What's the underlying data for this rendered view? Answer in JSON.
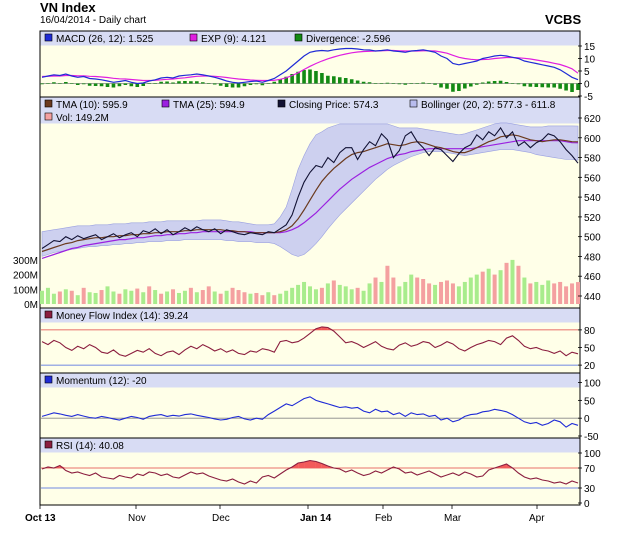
{
  "header": {
    "title": "VN Index",
    "subtitle": "16/04/2014 - Daily chart",
    "source": "VCBS"
  },
  "chart_data": {
    "type": "line",
    "x_labels": [
      "Oct 13",
      "Nov",
      "Dec",
      "Jan 14",
      "Feb",
      "Mar",
      "Apr"
    ],
    "panels": [
      {
        "id": "macd",
        "legend": [
          "MACD (26, 12): 1.525",
          "EXP (9): 4.121",
          "Divergence: -2.596"
        ],
        "colors": [
          "#1f2bd6",
          "#e01ee0",
          "#138a13"
        ],
        "y_ticks": [
          "15",
          "10",
          "5",
          "0",
          "-5"
        ],
        "ylim": [
          -5,
          15
        ]
      },
      {
        "id": "price",
        "legend": [
          "TMA (10): 595.9",
          "TMA (25): 594.9",
          "Closing Price: 574.3",
          "Bollinger (20, 2): 577.3 - 611.8",
          "Vol: 149.2M"
        ],
        "colors": [
          "#6b3a1e",
          "#9b20e0",
          "#111133",
          "#b8bcee",
          "#f4a0a0"
        ],
        "y_ticks": [
          "620",
          "600",
          "580",
          "560",
          "540",
          "520",
          "500",
          "480",
          "460",
          "440"
        ],
        "vol_ticks": [
          "300M",
          "200M",
          "100M",
          "0M"
        ],
        "ylim": [
          440,
          620
        ]
      },
      {
        "id": "mfi",
        "legend": [
          "Money Flow Index (14): 39.24"
        ],
        "colors": [
          "#8b1e3f"
        ],
        "y_ticks": [
          "80",
          "50",
          "20"
        ],
        "ylim": [
          10,
          90
        ]
      },
      {
        "id": "momentum",
        "legend": [
          "Momentum (12): -20"
        ],
        "colors": [
          "#1f2bd6"
        ],
        "y_ticks": [
          "100",
          "50",
          "0",
          "-50"
        ],
        "ylim": [
          -50,
          110
        ]
      },
      {
        "id": "rsi",
        "legend": [
          "RSI (14): 40.08"
        ],
        "colors": [
          "#8b1e3f"
        ],
        "y_ticks": [
          "100",
          "70",
          "30",
          "0"
        ],
        "ylim": [
          0,
          100
        ]
      }
    ],
    "series": [
      {
        "name": "Closing Price",
        "panel": "price",
        "values": [
          488,
          492,
          496,
          495,
          500,
          497,
          501,
          498,
          500,
          502,
          497,
          500,
          503,
          499,
          502,
          504,
          500,
          506,
          504,
          508,
          503,
          507,
          502,
          505,
          509,
          506,
          510,
          507,
          505,
          508,
          503,
          507,
          505,
          503,
          502,
          504,
          503,
          502,
          505,
          504,
          508,
          512,
          522,
          540,
          555,
          565,
          572,
          570,
          580,
          575,
          585,
          590,
          590,
          578,
          588,
          596,
          592,
          604,
          598,
          580,
          587,
          602,
          606,
          596,
          590,
          582,
          590,
          588,
          582,
          576,
          584,
          590,
          593,
          603,
          598,
          606,
          602,
          610,
          600,
          606,
          592,
          596,
          590,
          595,
          598,
          604,
          602,
          596,
          588,
          582,
          574.3
        ]
      },
      {
        "name": "TMA (10)",
        "panel": "price",
        "values": [
          485,
          487,
          489,
          491,
          493,
          494,
          496,
          497,
          498,
          499,
          499,
          500,
          500,
          501,
          501,
          502,
          502,
          503,
          503,
          504,
          504,
          505,
          505,
          505,
          506,
          506,
          507,
          507,
          507,
          507,
          507,
          506,
          506,
          505,
          505,
          504,
          504,
          504,
          504,
          504,
          505,
          507,
          511,
          518,
          527,
          537,
          547,
          556,
          563,
          569,
          574,
          579,
          583,
          585,
          586,
          588,
          590,
          592,
          594,
          593,
          592,
          593,
          595,
          596,
          595,
          593,
          591,
          590,
          588,
          586,
          585,
          585,
          587,
          590,
          593,
          596,
          598,
          601,
          602,
          603,
          602,
          600,
          598,
          597,
          596,
          597,
          598,
          598,
          597,
          596,
          595.9
        ]
      },
      {
        "name": "TMA (25)",
        "panel": "price",
        "values": [
          478,
          480,
          482,
          484,
          486,
          488,
          489,
          491,
          492,
          493,
          494,
          495,
          496,
          497,
          497,
          498,
          499,
          499,
          500,
          501,
          501,
          502,
          502,
          503,
          503,
          504,
          504,
          505,
          505,
          505,
          505,
          505,
          505,
          505,
          505,
          505,
          504,
          504,
          504,
          504,
          504,
          505,
          507,
          510,
          514,
          519,
          524,
          530,
          536,
          542,
          548,
          553,
          558,
          562,
          566,
          570,
          573,
          576,
          579,
          581,
          583,
          584,
          586,
          587,
          588,
          589,
          589,
          589,
          589,
          589,
          589,
          589,
          589,
          590,
          591,
          592,
          593,
          594,
          595,
          596,
          597,
          597,
          597,
          597,
          597,
          597,
          597,
          597,
          596,
          595,
          594.9
        ]
      },
      {
        "name": "Bollinger Upper",
        "panel": "price",
        "values": [
          505,
          506,
          507,
          508,
          509,
          510,
          511,
          511,
          511,
          512,
          512,
          512,
          513,
          513,
          513,
          514,
          514,
          514,
          515,
          515,
          515,
          516,
          516,
          516,
          516,
          516,
          516,
          517,
          517,
          517,
          517,
          516,
          515,
          515,
          514,
          513,
          512,
          512,
          512,
          513,
          520,
          530,
          548,
          568,
          582,
          594,
          603,
          606,
          610,
          612,
          614,
          614,
          614,
          614,
          614,
          614,
          614,
          614,
          614,
          612,
          610,
          610,
          610,
          610,
          609,
          608,
          607,
          606,
          605,
          604,
          603,
          604,
          606,
          608,
          610,
          612,
          614,
          615,
          615,
          614,
          613,
          612,
          611,
          611,
          611,
          612,
          612,
          612,
          612,
          612,
          611.8
        ]
      },
      {
        "name": "Bollinger Lower",
        "panel": "price",
        "values": [
          480,
          482,
          484,
          485,
          486,
          487,
          488,
          489,
          490,
          490,
          491,
          491,
          492,
          492,
          493,
          493,
          494,
          494,
          495,
          495,
          495,
          496,
          496,
          496,
          497,
          497,
          497,
          497,
          497,
          497,
          497,
          496,
          496,
          495,
          495,
          495,
          494,
          494,
          494,
          493,
          490,
          486,
          482,
          480,
          482,
          487,
          493,
          500,
          508,
          515,
          522,
          528,
          534,
          540,
          546,
          552,
          558,
          563,
          568,
          572,
          575,
          578,
          581,
          583,
          585,
          586,
          586,
          586,
          585,
          584,
          583,
          582,
          583,
          584,
          585,
          586,
          587,
          588,
          588,
          588,
          587,
          586,
          585,
          583,
          582,
          581,
          580,
          579,
          578,
          578,
          577.3
        ]
      },
      {
        "name": "Volume",
        "panel": "price_vol",
        "values": [
          90,
          110,
          70,
          85,
          100,
          90,
          60,
          110,
          80,
          75,
          95,
          120,
          85,
          70,
          100,
          90,
          105,
          80,
          120,
          95,
          70,
          85,
          100,
          75,
          90,
          110,
          80,
          95,
          120,
          85,
          70,
          90,
          110,
          95,
          80,
          70,
          75,
          60,
          80,
          60,
          70,
          90,
          110,
          130,
          150,
          120,
          100,
          110,
          140,
          160,
          130,
          120,
          100,
          110,
          90,
          140,
          180,
          150,
          260,
          180,
          120,
          150,
          200,
          180,
          170,
          140,
          130,
          150,
          160,
          140,
          120,
          150,
          180,
          200,
          220,
          240,
          200,
          230,
          280,
          300,
          260,
          180,
          140,
          150,
          130,
          160,
          140,
          150,
          120,
          140,
          149.2
        ]
      },
      {
        "name": "MACD",
        "panel": "macd",
        "values": [
          2.5,
          3,
          3.5,
          3.2,
          3.8,
          3,
          2.5,
          2.8,
          2,
          1.8,
          1.5,
          1,
          0.5,
          0.8,
          1.2,
          0.5,
          0,
          0.2,
          1,
          1.5,
          2.2,
          2.5,
          2.2,
          3,
          3.3,
          3.5,
          3.8,
          3.5,
          3,
          2.5,
          1.8,
          1,
          0.5,
          0.2,
          0.5,
          0.8,
          1,
          0.5,
          1.2,
          2,
          3.5,
          5,
          7,
          9,
          11,
          12.5,
          13,
          13.2,
          13,
          13.5,
          13.8,
          14,
          14,
          13.8,
          13.5,
          13.4,
          13,
          13.2,
          13.5,
          13,
          12.8,
          12.5,
          13,
          13.2,
          13.5,
          13,
          12.5,
          11,
          10,
          8,
          7.5,
          8,
          8.5,
          9,
          10,
          10.5,
          11,
          11.3,
          11,
          10.5,
          10,
          9,
          8.5,
          8,
          7.5,
          7,
          6.5,
          5.5,
          4,
          2.5,
          1.525
        ]
      },
      {
        "name": "EXP",
        "panel": "macd",
        "values": [
          2.8,
          2.9,
          3,
          3,
          3.2,
          3.2,
          3.1,
          3.1,
          2.9,
          2.8,
          2.6,
          2.4,
          2.1,
          1.9,
          1.8,
          1.6,
          1.4,
          1.2,
          1.2,
          1.3,
          1.5,
          1.7,
          1.8,
          2.1,
          2.3,
          2.6,
          2.9,
          3,
          3,
          2.9,
          2.7,
          2.4,
          2.1,
          1.8,
          1.6,
          1.4,
          1.3,
          1.2,
          1.2,
          1.3,
          1.7,
          2.3,
          3.2,
          4.3,
          5.6,
          6.9,
          8,
          9,
          9.9,
          10.6,
          11.3,
          11.8,
          12.3,
          12.6,
          12.8,
          12.9,
          13,
          13.1,
          13.2,
          13.2,
          13.1,
          13,
          13,
          13,
          13.1,
          13.1,
          13,
          12.6,
          12.1,
          11.3,
          10.5,
          10,
          9.7,
          9.5,
          9.6,
          9.7,
          10,
          10.2,
          10.4,
          10.4,
          10.3,
          10.1,
          9.8,
          9.4,
          9,
          8.6,
          8.1,
          7.6,
          6.8,
          5.9,
          4.121
        ]
      },
      {
        "name": "Divergence",
        "panel": "macd_hist",
        "values": [
          -0.3,
          0.1,
          0.5,
          0.2,
          0.6,
          -0.2,
          -0.6,
          -0.3,
          -0.9,
          -1,
          -1.1,
          -1.4,
          -1.6,
          -1.1,
          -0.6,
          -1.1,
          -1.4,
          -1,
          -0.2,
          0.2,
          0.7,
          0.8,
          0.4,
          0.9,
          1,
          0.9,
          0.9,
          0.5,
          0,
          -0.4,
          -0.9,
          -1.4,
          -1.6,
          -1.6,
          -1.1,
          -0.6,
          -0.3,
          -0.7,
          0,
          0.7,
          1.8,
          2.7,
          3.8,
          4.7,
          5.4,
          5.6,
          5,
          4.2,
          3.1,
          2.9,
          2.5,
          2.2,
          1.7,
          1.2,
          0.7,
          0.5,
          0,
          0.1,
          0.3,
          -0.2,
          -0.3,
          -0.5,
          0,
          0.2,
          0.4,
          -0.1,
          -0.5,
          -1.6,
          -2.1,
          -3.3,
          -3,
          -2,
          -1.2,
          -0.5,
          0.4,
          0.8,
          1,
          1.1,
          0.6,
          0.1,
          -0.3,
          -1.1,
          -1.3,
          -1.4,
          -1.5,
          -1.6,
          -1.6,
          -2.1,
          -2.8,
          -3.4,
          -2.596
        ]
      },
      {
        "name": "Money Flow Index",
        "panel": "mfi",
        "values": [
          60,
          55,
          62,
          58,
          50,
          45,
          52,
          48,
          55,
          50,
          42,
          40,
          46,
          38,
          35,
          40,
          45,
          42,
          48,
          40,
          36,
          42,
          44,
          38,
          46,
          52,
          48,
          55,
          50,
          44,
          48,
          42,
          46,
          40,
          38,
          44,
          42,
          48,
          46,
          42,
          60,
          62,
          58,
          60,
          66,
          74,
          82,
          85,
          84,
          78,
          68,
          58,
          60,
          56,
          50,
          55,
          60,
          52,
          48,
          46,
          54,
          58,
          52,
          55,
          60,
          58,
          50,
          54,
          60,
          56,
          48,
          44,
          50,
          55,
          58,
          62,
          60,
          55,
          66,
          70,
          62,
          52,
          48,
          50,
          46,
          44,
          40,
          44,
          36,
          42,
          39.24
        ]
      },
      {
        "name": "Momentum",
        "panel": "momentum",
        "values": [
          5,
          10,
          15,
          12,
          8,
          5,
          10,
          6,
          2,
          0,
          5,
          2,
          -2,
          -5,
          0,
          5,
          2,
          -3,
          5,
          8,
          10,
          5,
          8,
          6,
          10,
          12,
          8,
          5,
          2,
          -2,
          -5,
          -3,
          2,
          5,
          -2,
          -5,
          0,
          -3,
          10,
          20,
          30,
          40,
          35,
          45,
          55,
          60,
          50,
          45,
          40,
          35,
          30,
          32,
          28,
          30,
          20,
          15,
          25,
          18,
          20,
          10,
          15,
          5,
          15,
          10,
          12,
          5,
          8,
          -5,
          0,
          -10,
          -5,
          5,
          10,
          12,
          18,
          20,
          25,
          22,
          18,
          10,
          0,
          -10,
          -15,
          -12,
          -20,
          -15,
          -5,
          -10,
          -25,
          -15,
          -20
        ]
      },
      {
        "name": "RSI",
        "panel": "rsi",
        "values": [
          68,
          72,
          70,
          75,
          65,
          60,
          62,
          58,
          55,
          60,
          52,
          50,
          48,
          55,
          52,
          50,
          58,
          55,
          62,
          60,
          55,
          58,
          52,
          50,
          56,
          62,
          58,
          60,
          54,
          50,
          46,
          44,
          48,
          42,
          38,
          44,
          40,
          52,
          55,
          50,
          58,
          66,
          72,
          80,
          82,
          85,
          83,
          79,
          74,
          70,
          68,
          62,
          66,
          60,
          55,
          58,
          64,
          60,
          66,
          72,
          68,
          60,
          62,
          56,
          60,
          64,
          58,
          52,
          56,
          60,
          55,
          62,
          58,
          52,
          54,
          66,
          70,
          74,
          78,
          70,
          60,
          52,
          48,
          50,
          46,
          44,
          40,
          42,
          38,
          44,
          40.08
        ]
      }
    ]
  }
}
